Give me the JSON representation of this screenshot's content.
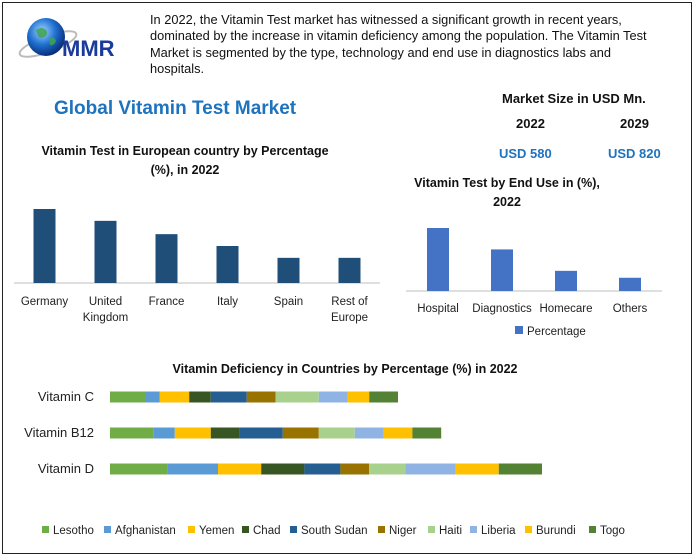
{
  "brand": {
    "logo_text": "MMR"
  },
  "intro": {
    "text": "In 2022, the Vitamin Test market has witnessed a significant growth in recent years, dominated by the increase in vitamin deficiency among the population. The Vitamin Test Market is segmented by the type, technology and end use in diagnostics labs and hospitals."
  },
  "header": {
    "title": "Global Vitamin Test Market"
  },
  "market_size": {
    "title": "Market Size in USD Mn.",
    "year_1": "2022",
    "value_1": "USD 580",
    "year_2": "2029",
    "value_2": "USD 820"
  },
  "colors": {
    "accent": "#1e73be",
    "bar_dark": "#1f4e79",
    "bar_blue": "#4472c4",
    "frame": "#222222"
  },
  "chart_data": [
    {
      "id": "europe",
      "type": "bar",
      "title": "Vitamin Test in European country by Percentage (%), in 2022",
      "categories": [
        "Germany",
        "United Kingdom",
        "France",
        "Italy",
        "Spain",
        "Rest of Europe"
      ],
      "values": [
        100,
        84,
        66,
        50,
        34,
        34
      ],
      "ylim": [
        0,
        100
      ],
      "grid": false,
      "legend": "none"
    },
    {
      "id": "end_use",
      "type": "bar",
      "title": "Vitamin Test by End Use in (%), 2022",
      "categories": [
        "Hospital",
        "Diagnostics",
        "Homecare",
        "Others"
      ],
      "series": [
        {
          "name": "Percentage",
          "values": [
            100,
            66,
            32,
            21
          ]
        }
      ],
      "ylim": [
        0,
        100
      ],
      "grid": false,
      "legend": "bottom"
    },
    {
      "id": "deficiency",
      "type": "bar",
      "orientation": "horizontal",
      "stacked": true,
      "title": "Vitamin Deficiency in Countries by Percentage (%) in 2022",
      "categories": [
        "Vitamin C",
        "Vitamin B12",
        "Vitamin D"
      ],
      "series": [
        {
          "name": "Lesotho",
          "color": "#70ad47",
          "values": [
            40,
            48,
            64
          ]
        },
        {
          "name": "Afghanistan",
          "color": "#5b9bd5",
          "values": [
            15,
            24,
            56
          ]
        },
        {
          "name": "Yemen",
          "color": "#ffc000",
          "values": [
            33,
            40,
            48
          ]
        },
        {
          "name": "Chad",
          "color": "#375623",
          "values": [
            24,
            32,
            48
          ]
        },
        {
          "name": "South Sudan",
          "color": "#255e91",
          "values": [
            40,
            48,
            40
          ]
        },
        {
          "name": "Niger",
          "color": "#997300",
          "values": [
            32,
            40,
            32
          ]
        },
        {
          "name": "Haiti",
          "color": "#a9d18e",
          "values": [
            48,
            40,
            40
          ]
        },
        {
          "name": "Liberia",
          "color": "#8fb4e3",
          "values": [
            32,
            32,
            56
          ]
        },
        {
          "name": "Burundi",
          "color": "#ffc000",
          "values": [
            24,
            32,
            48
          ]
        },
        {
          "name": "Togo",
          "color": "#548235",
          "values": [
            32,
            32,
            48
          ]
        }
      ],
      "grid": false,
      "legend": "bottom"
    }
  ]
}
